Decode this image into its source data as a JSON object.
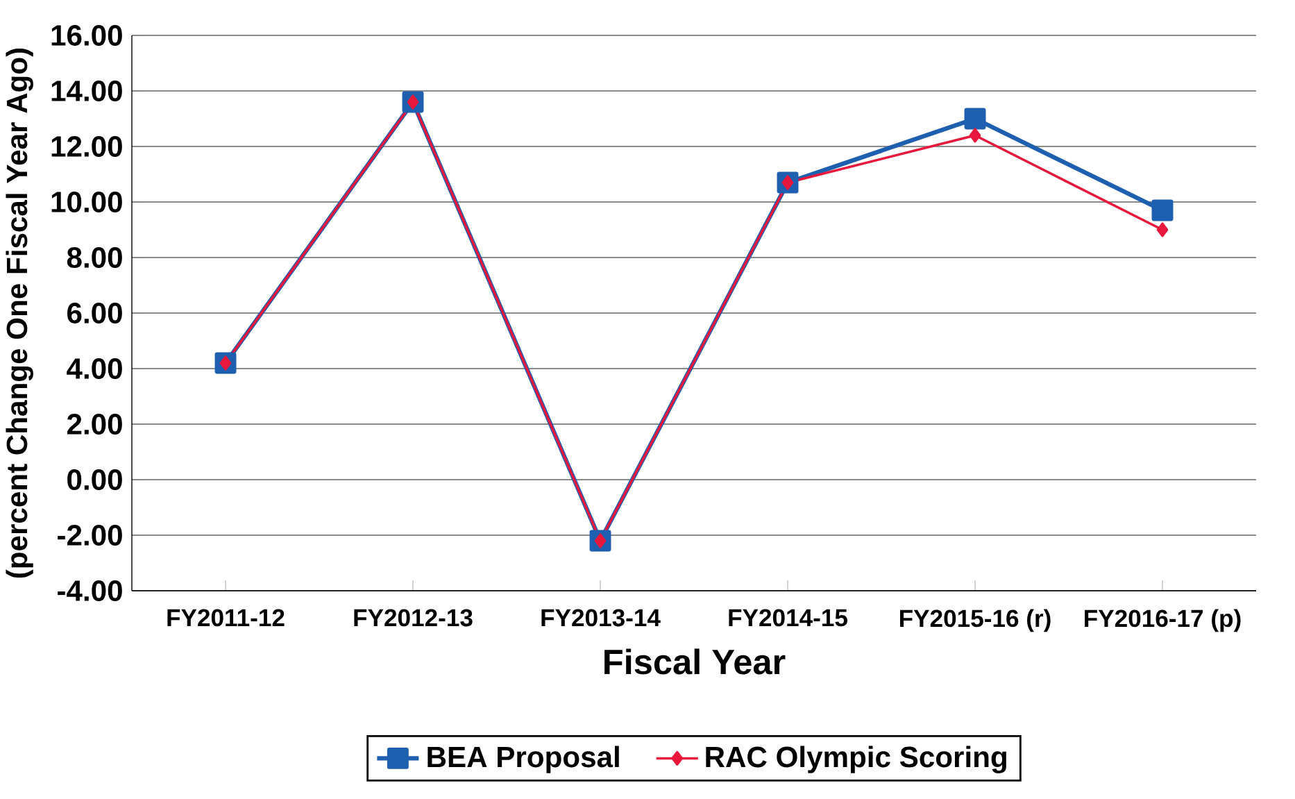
{
  "chart_data": {
    "type": "line",
    "xlabel": "Fiscal Year",
    "ylabel": "(percent Change One Fiscal Year Ago)",
    "categories": [
      "FY2011-12",
      "FY2012-13",
      "FY2013-14",
      "FY2014-15",
      "FY2015-16 (r)",
      "FY2016-17 (p)"
    ],
    "series": [
      {
        "name": "BEA Proposal",
        "color": "#1f5fb0",
        "marker": "square",
        "values": [
          4.2,
          13.6,
          -2.2,
          10.7,
          13.0,
          9.7
        ]
      },
      {
        "name": "RAC Olympic Scoring",
        "color": "#e8173c",
        "marker": "diamond",
        "values": [
          4.2,
          13.6,
          -2.2,
          10.7,
          12.4,
          9.0
        ]
      }
    ],
    "ylim": [
      -4,
      16
    ],
    "yticks": [
      {
        "value": -4,
        "label": "-4.00"
      },
      {
        "value": -2,
        "label": "-2.00"
      },
      {
        "value": 0,
        "label": "0.00"
      },
      {
        "value": 2,
        "label": "2.00"
      },
      {
        "value": 4,
        "label": "4.00"
      },
      {
        "value": 6,
        "label": "6.00"
      },
      {
        "value": 8,
        "label": "8.00"
      },
      {
        "value": 10,
        "label": "10.00"
      },
      {
        "value": 12,
        "label": "12.00"
      },
      {
        "value": 14,
        "label": "14.00"
      },
      {
        "value": 16,
        "label": "16.00"
      }
    ],
    "grid": "y",
    "legend": "bottom"
  }
}
